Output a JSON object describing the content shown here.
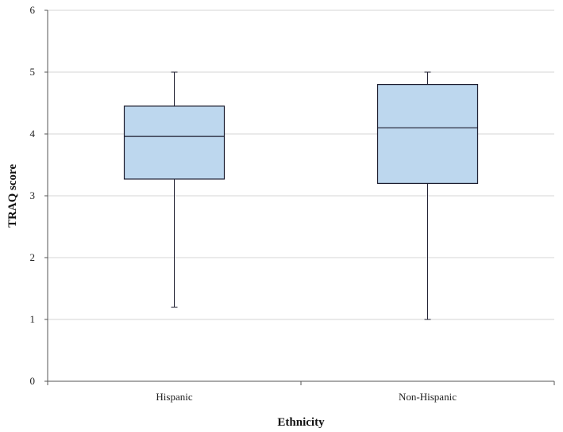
{
  "chart_data": {
    "type": "boxplot",
    "xlabel": "Ethnicity",
    "ylabel": "TRAQ score",
    "ylim": [
      0,
      6
    ],
    "yticks": [
      "0",
      "1",
      "2",
      "3",
      "4",
      "5",
      "6"
    ],
    "grid": true,
    "categories": [
      "Hispanic",
      "Non-Hispanic"
    ],
    "boxes": [
      {
        "category": "Hispanic",
        "min": 1.2,
        "q1": 3.27,
        "median": 3.96,
        "q3": 4.45,
        "max": 5.0
      },
      {
        "category": "Non-Hispanic",
        "min": 1.0,
        "q1": 3.2,
        "median": 4.1,
        "q3": 4.8,
        "max": 5.0
      }
    ],
    "colors": {
      "box_fill": "#bdd7ee",
      "box_stroke": "#1c1c2e",
      "grid": "#d4d4d4"
    }
  }
}
